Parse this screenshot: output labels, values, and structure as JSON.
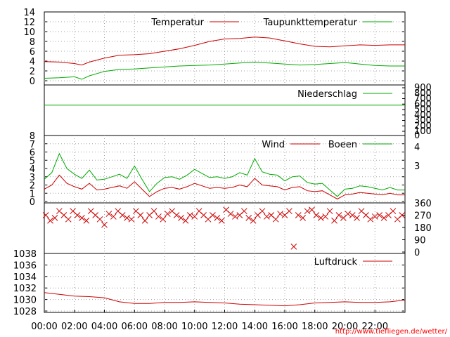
{
  "time_axis": {
    "ticks": [
      "00:00",
      "02:00",
      "04:00",
      "06:00",
      "08:00",
      "10:00",
      "12:00",
      "14:00",
      "16:00",
      "18:00",
      "20:00",
      "22:00"
    ]
  },
  "source_url": "http://www.tiefliegen.de/wetter/",
  "colors": {
    "temperature": "#cc0000",
    "dewpoint": "#00aa00",
    "precipitation": "#00aa00",
    "wind": "#cc0000",
    "gusts": "#00aa00",
    "direction": "#cc0000",
    "pressure": "#cc0000"
  },
  "chart_data": [
    {
      "type": "line",
      "panel": "temperature",
      "ylim": [
        0,
        14
      ],
      "yticks": [
        "0",
        "2",
        "4",
        "6",
        "8",
        "10",
        "12",
        "14"
      ],
      "legend_placement": "top-right",
      "grid": true,
      "x_hours": [
        0,
        1,
        2,
        2.5,
        3,
        4,
        5,
        6,
        7,
        8,
        9,
        10,
        11,
        12,
        13,
        14,
        15,
        16,
        17,
        18,
        19,
        20,
        21,
        22,
        23,
        24
      ],
      "series": [
        {
          "name": "Temperatur",
          "values": [
            3.9,
            3.8,
            3.5,
            3.2,
            3.8,
            4.6,
            5.2,
            5.3,
            5.5,
            6.0,
            6.5,
            7.2,
            8.0,
            8.5,
            8.6,
            8.9,
            8.7,
            8.1,
            7.5,
            7.0,
            6.9,
            7.1,
            7.3,
            7.2,
            7.3,
            7.3
          ]
        },
        {
          "name": "Taupunkttemperatur",
          "values": [
            0.5,
            0.6,
            0.8,
            0.3,
            1.0,
            1.9,
            2.3,
            2.4,
            2.6,
            2.8,
            3.0,
            3.1,
            3.2,
            3.4,
            3.6,
            3.8,
            3.6,
            3.4,
            3.2,
            3.3,
            3.5,
            3.7,
            3.4,
            3.1,
            3.0,
            3.0
          ]
        }
      ]
    },
    {
      "type": "line",
      "panel": "precipitation",
      "ylim": [
        0,
        900
      ],
      "yticks": [
        "100",
        "200",
        "300",
        "400",
        "500",
        "600",
        "700",
        "800",
        "900"
      ],
      "legend_placement": "top-right",
      "series": [
        {
          "name": "Niederschlag",
          "x_hours": [
            0,
            24
          ],
          "values": [
            580,
            580
          ]
        }
      ]
    },
    {
      "type": "line",
      "panel": "wind",
      "ylim": [
        0,
        8
      ],
      "yticks": [
        "0",
        "1",
        "2",
        "3",
        "4",
        "5",
        "6",
        "7",
        "8"
      ],
      "right_ticks": [
        "0",
        "3",
        "4"
      ],
      "legend_placement": "top-right",
      "grid": true,
      "x_hours": [
        0,
        0.5,
        1,
        1.5,
        2,
        2.5,
        3,
        3.5,
        4,
        4.5,
        5,
        5.5,
        6,
        6.5,
        7,
        7.5,
        8,
        8.5,
        9,
        9.5,
        10,
        10.5,
        11,
        11.5,
        12,
        12.5,
        13,
        13.5,
        14,
        14.5,
        15,
        15.5,
        16,
        16.5,
        17,
        17.5,
        18,
        18.5,
        19,
        19.5,
        20,
        20.5,
        21,
        21.5,
        22,
        22.5,
        23,
        23.5,
        24
      ],
      "series": [
        {
          "name": "Wind",
          "values": [
            1.5,
            2.0,
            3.2,
            2.2,
            1.8,
            1.5,
            2.2,
            1.4,
            1.5,
            1.7,
            1.9,
            1.6,
            2.4,
            1.5,
            0.6,
            1.2,
            1.6,
            1.7,
            1.5,
            1.8,
            2.2,
            1.9,
            1.6,
            1.7,
            1.6,
            1.7,
            2.0,
            1.8,
            2.8,
            2.0,
            1.9,
            1.8,
            1.4,
            1.7,
            1.8,
            1.3,
            1.2,
            1.3,
            0.8,
            0.3,
            0.8,
            0.9,
            1.1,
            1.0,
            0.9,
            0.8,
            1.0,
            0.8,
            0.8
          ]
        },
        {
          "name": "Boeen",
          "values": [
            2.7,
            3.5,
            5.8,
            4.0,
            3.3,
            2.8,
            3.8,
            2.6,
            2.7,
            3.0,
            3.3,
            2.8,
            4.3,
            2.7,
            1.2,
            2.2,
            2.9,
            3.0,
            2.7,
            3.2,
            3.9,
            3.4,
            2.9,
            3.0,
            2.8,
            3.0,
            3.5,
            3.2,
            5.2,
            3.6,
            3.3,
            3.2,
            2.5,
            3.0,
            3.1,
            2.3,
            2.1,
            2.2,
            1.4,
            0.6,
            1.5,
            1.6,
            1.9,
            1.8,
            1.6,
            1.4,
            1.7,
            1.4,
            1.4
          ]
        }
      ]
    },
    {
      "type": "scatter",
      "panel": "wind_direction",
      "ylim": [
        0,
        360
      ],
      "yticks": [
        "0",
        "90",
        "180",
        "270",
        "360"
      ],
      "x_hours": [
        0.1,
        0.4,
        0.7,
        1.0,
        1.3,
        1.6,
        1.9,
        2.2,
        2.5,
        2.8,
        3.1,
        3.4,
        3.7,
        4.0,
        4.3,
        4.6,
        4.9,
        5.2,
        5.5,
        5.8,
        6.1,
        6.4,
        6.7,
        7.0,
        7.3,
        7.6,
        7.9,
        8.2,
        8.5,
        8.8,
        9.1,
        9.4,
        9.7,
        10.0,
        10.3,
        10.6,
        10.9,
        11.2,
        11.5,
        11.8,
        12.1,
        12.4,
        12.7,
        13.0,
        13.3,
        13.6,
        13.9,
        14.2,
        14.5,
        14.8,
        15.1,
        15.4,
        15.7,
        16.0,
        16.3,
        16.6,
        16.9,
        17.2,
        17.5,
        17.8,
        18.1,
        18.4,
        18.7,
        19.0,
        19.3,
        19.6,
        19.9,
        20.2,
        20.5,
        20.8,
        21.1,
        21.4,
        21.7,
        22.0,
        22.3,
        22.6,
        22.9,
        23.2,
        23.5,
        23.8
      ],
      "values": [
        270,
        230,
        250,
        300,
        270,
        240,
        300,
        270,
        250,
        230,
        300,
        270,
        240,
        200,
        280,
        260,
        300,
        270,
        250,
        240,
        300,
        270,
        230,
        270,
        300,
        260,
        240,
        280,
        300,
        270,
        250,
        230,
        270,
        260,
        300,
        270,
        240,
        270,
        250,
        230,
        310,
        280,
        260,
        270,
        300,
        250,
        230,
        270,
        300,
        260,
        270,
        240,
        280,
        270,
        300,
        40,
        270,
        250,
        300,
        310,
        270,
        250,
        260,
        300,
        230,
        270,
        250,
        280,
        270,
        250,
        300,
        270,
        240,
        260,
        270,
        250,
        270,
        300,
        240,
        270
      ]
    },
    {
      "type": "line",
      "panel": "pressure",
      "ylim": [
        1028,
        1038
      ],
      "yticks": [
        "1028",
        "1030",
        "1032",
        "1034",
        "1036",
        "1038"
      ],
      "legend_placement": "top-right",
      "grid": true,
      "x_hours": [
        0,
        1,
        2,
        3,
        4,
        5,
        6,
        7,
        8,
        9,
        10,
        11,
        12,
        13,
        14,
        15,
        16,
        17,
        18,
        19,
        20,
        21,
        22,
        23,
        24
      ],
      "series": [
        {
          "name": "Luftdruck",
          "values": [
            1031.2,
            1030.9,
            1030.6,
            1030.5,
            1030.3,
            1029.6,
            1029.3,
            1029.3,
            1029.5,
            1029.5,
            1029.6,
            1029.5,
            1029.4,
            1029.2,
            1029.1,
            1029.0,
            1028.9,
            1029.1,
            1029.4,
            1029.5,
            1029.6,
            1029.5,
            1029.5,
            1029.6,
            1029.9
          ]
        }
      ]
    }
  ]
}
